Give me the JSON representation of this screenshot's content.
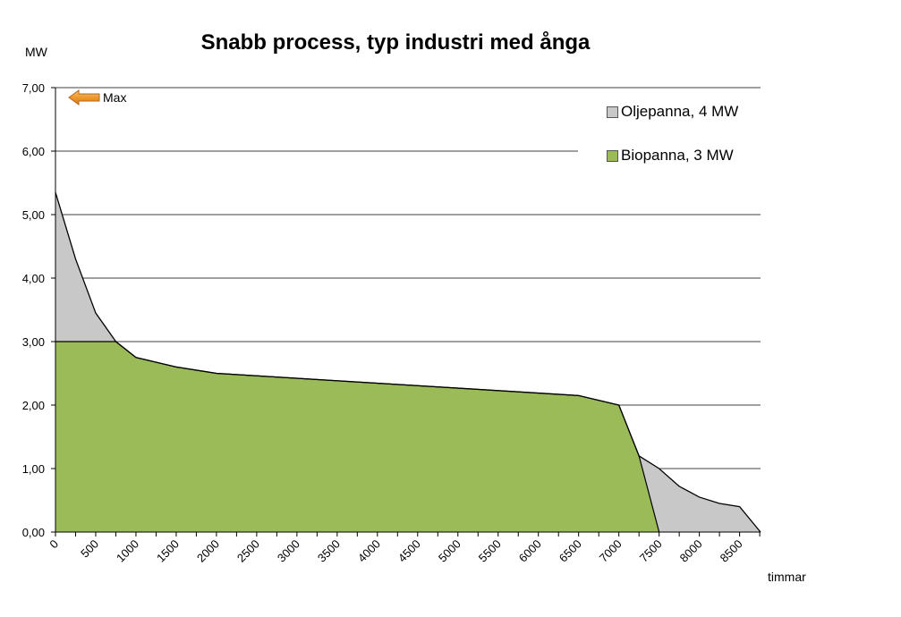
{
  "chart_data": {
    "type": "area",
    "title": "Snabb process, typ industri med ånga",
    "ylabel": "MW",
    "xlabel": "timmar",
    "xlim": [
      0,
      8760
    ],
    "ylim": [
      0,
      7
    ],
    "y_ticks": [
      "0,00",
      "1,00",
      "2,00",
      "3,00",
      "4,00",
      "5,00",
      "6,00",
      "7,00"
    ],
    "x_ticks": [
      0,
      500,
      1000,
      1500,
      2000,
      2500,
      3000,
      3500,
      4000,
      4500,
      5000,
      5500,
      6000,
      6500,
      7000,
      7500,
      8000,
      8500
    ],
    "grid": true,
    "legend_position": "top-right",
    "series": [
      {
        "name": "Oljepanna, 4 MW",
        "color": "#c8c8c8",
        "x": [
          0,
          250,
          500,
          750,
          1000,
          1500,
          2000,
          6500,
          7000,
          7250,
          7500,
          7750,
          8000,
          8250,
          8500,
          8760
        ],
        "y": [
          5.35,
          4.3,
          3.45,
          3.0,
          2.75,
          2.6,
          2.5,
          2.15,
          2.0,
          1.2,
          1.0,
          0.72,
          0.55,
          0.45,
          0.4,
          0.0
        ]
      },
      {
        "name": "Biopanna, 3 MW",
        "color": "#9bbb59",
        "x": [
          0,
          750,
          1000,
          1500,
          2000,
          6500,
          7000,
          7250,
          7500
        ],
        "y": [
          3.0,
          3.0,
          2.75,
          2.6,
          2.5,
          2.15,
          2.0,
          1.2,
          0.0
        ]
      }
    ],
    "annotation": {
      "text": "Max",
      "y": 7.0
    }
  }
}
